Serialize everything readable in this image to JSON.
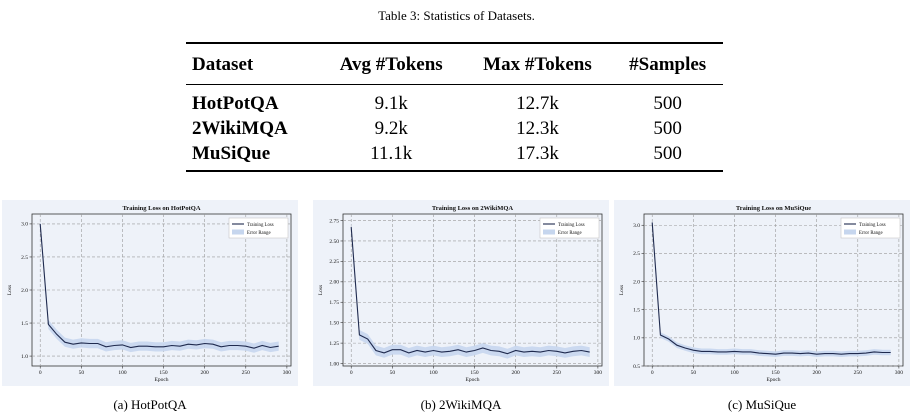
{
  "table": {
    "caption": "Table 3: Statistics of Datasets.",
    "headers": [
      "Dataset",
      "Avg #Tokens",
      "Max #Tokens",
      "#Samples"
    ],
    "rows": [
      [
        "HotPotQA",
        "9.1k",
        "12.7k",
        "500"
      ],
      [
        "2WikiMQA",
        "9.2k",
        "12.3k",
        "500"
      ],
      [
        "MuSiQue",
        "11.1k",
        "17.3k",
        "500"
      ]
    ]
  },
  "chart_data": [
    {
      "type": "line",
      "title": "Training Loss on HotPotQA",
      "xlabel": "Epoch",
      "ylabel": "Loss",
      "xlim": [
        -10,
        305
      ],
      "ylim": [
        0.85,
        3.15
      ],
      "xticks": [
        "0",
        "50",
        "100",
        "150",
        "200",
        "250",
        "300"
      ],
      "yticks": [
        "1.0",
        "1.5",
        "2.0",
        "2.5",
        "3.0"
      ],
      "grid": true,
      "legend_position": "top-right",
      "legend": [
        "Training Loss",
        "Error Range"
      ],
      "error_band": 0.07,
      "x": [
        0,
        10,
        20,
        30,
        40,
        50,
        60,
        70,
        80,
        90,
        100,
        110,
        120,
        130,
        140,
        150,
        160,
        170,
        180,
        190,
        200,
        210,
        220,
        230,
        240,
        250,
        260,
        270,
        280,
        290
      ],
      "series": [
        {
          "name": "Training Loss",
          "values": [
            3.0,
            1.48,
            1.33,
            1.21,
            1.18,
            1.2,
            1.19,
            1.19,
            1.14,
            1.16,
            1.17,
            1.13,
            1.15,
            1.15,
            1.14,
            1.14,
            1.16,
            1.15,
            1.18,
            1.17,
            1.19,
            1.18,
            1.14,
            1.16,
            1.16,
            1.15,
            1.12,
            1.16,
            1.13,
            1.15
          ]
        }
      ],
      "caption": "(a) HotPotQA"
    },
    {
      "type": "line",
      "title": "Training Loss on 2WikiMQA",
      "xlabel": "Epoch",
      "ylabel": "Loss",
      "xlim": [
        -10,
        305
      ],
      "ylim": [
        0.97,
        2.83
      ],
      "xticks": [
        "0",
        "50",
        "100",
        "150",
        "200",
        "250",
        "300"
      ],
      "yticks": [
        "1.00",
        "1.25",
        "1.50",
        "1.75",
        "2.00",
        "2.25",
        "2.50",
        "2.75"
      ],
      "grid": true,
      "legend_position": "top-right",
      "legend": [
        "Training Loss",
        "Error Range"
      ],
      "error_band": 0.06,
      "x": [
        0,
        10,
        20,
        30,
        40,
        50,
        60,
        70,
        80,
        90,
        100,
        110,
        120,
        130,
        140,
        150,
        160,
        170,
        180,
        190,
        200,
        210,
        220,
        230,
        240,
        250,
        260,
        270,
        280,
        290
      ],
      "series": [
        {
          "name": "Training Loss",
          "values": [
            2.67,
            1.35,
            1.3,
            1.16,
            1.13,
            1.17,
            1.17,
            1.13,
            1.16,
            1.14,
            1.16,
            1.14,
            1.15,
            1.17,
            1.14,
            1.16,
            1.19,
            1.16,
            1.15,
            1.12,
            1.16,
            1.14,
            1.15,
            1.14,
            1.16,
            1.15,
            1.13,
            1.15,
            1.16,
            1.14
          ]
        }
      ],
      "caption": "(b) 2WikiMQA"
    },
    {
      "type": "line",
      "title": "Training Loss on MuSiQue",
      "xlabel": "Epoch",
      "ylabel": "Loss",
      "xlim": [
        -10,
        305
      ],
      "ylim": [
        0.5,
        3.2
      ],
      "xticks": [
        "0",
        "50",
        "100",
        "150",
        "200",
        "250",
        "300"
      ],
      "yticks": [
        "0.5",
        "1.0",
        "1.5",
        "2.0",
        "2.5",
        "3.0"
      ],
      "grid": true,
      "legend_position": "top-right",
      "legend": [
        "Training Loss",
        "Error Range"
      ],
      "error_band": 0.05,
      "x": [
        0,
        10,
        20,
        30,
        40,
        50,
        60,
        70,
        80,
        90,
        100,
        110,
        120,
        130,
        140,
        150,
        160,
        170,
        180,
        190,
        200,
        210,
        220,
        230,
        240,
        250,
        260,
        270,
        280,
        290
      ],
      "series": [
        {
          "name": "Training Loss",
          "values": [
            3.05,
            1.05,
            0.98,
            0.87,
            0.82,
            0.78,
            0.76,
            0.76,
            0.75,
            0.75,
            0.76,
            0.75,
            0.75,
            0.73,
            0.72,
            0.71,
            0.73,
            0.73,
            0.72,
            0.73,
            0.71,
            0.72,
            0.72,
            0.71,
            0.72,
            0.72,
            0.73,
            0.75,
            0.74,
            0.74
          ]
        }
      ],
      "caption": "(c) MuSiQue"
    }
  ],
  "colors": {
    "line": "#1f2a4e",
    "band": "#c6d6ee",
    "grid": "#9a9a9a",
    "plot_bg": "#eef2f9"
  }
}
